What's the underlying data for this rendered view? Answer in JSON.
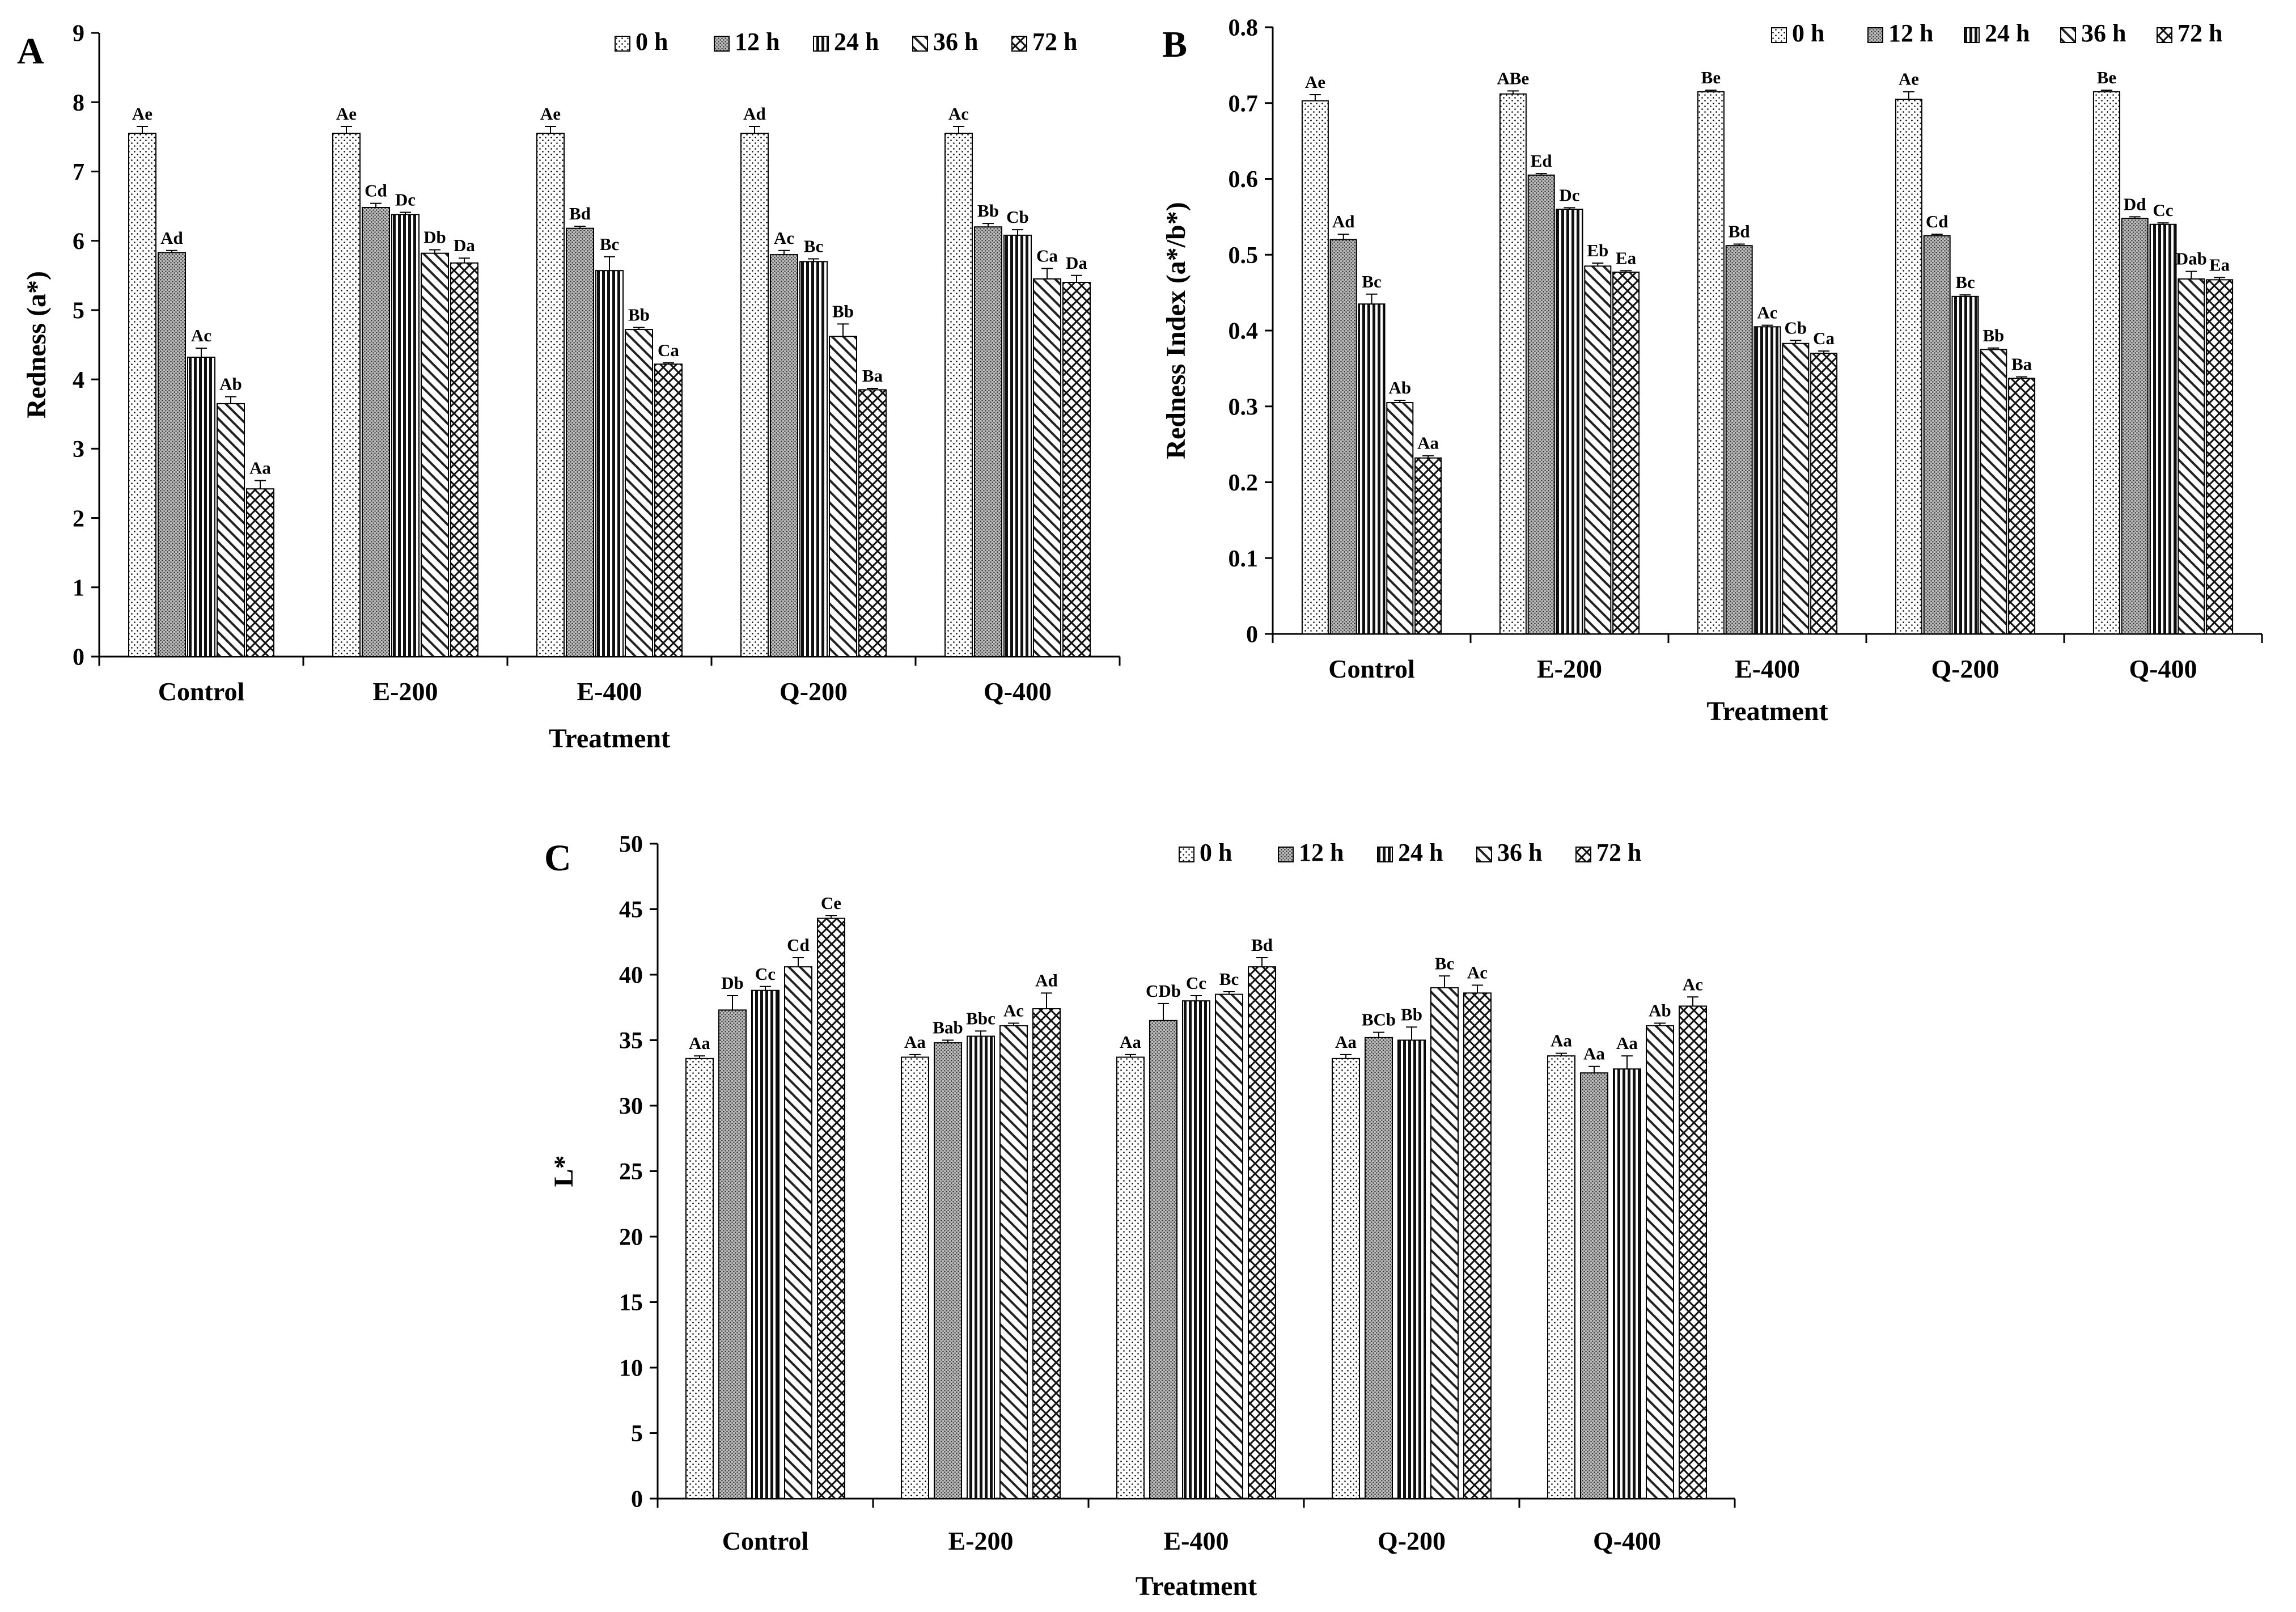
{
  "legend": [
    "0 h",
    "12 h",
    "24 h",
    "36 h",
    "72 h"
  ],
  "patterns": [
    "dots",
    "dense-dots",
    "vertical",
    "diagonal",
    "cross"
  ],
  "chart_data": [
    {
      "panel": "A",
      "type": "bar",
      "title": "",
      "xlabel": "Treatment",
      "ylabel": "Redness  (a*)",
      "ylim": [
        0,
        9
      ],
      "ystep": 1,
      "yticks": [
        "0",
        "1",
        "2",
        "3",
        "4",
        "5",
        "6",
        "7",
        "8",
        "9"
      ],
      "legend_position": "top-right",
      "categories": [
        "Control",
        "E-200",
        "E-400",
        "Q-200",
        "Q-400"
      ],
      "series": [
        {
          "name": "0 h",
          "values": [
            7.55,
            7.55,
            7.55,
            7.55,
            7.55
          ],
          "errors": [
            0.1,
            0.1,
            0.1,
            0.1,
            0.1
          ],
          "labels": [
            "Ae",
            "Ae",
            "Ae",
            "Ad",
            "Ac"
          ]
        },
        {
          "name": "12 h",
          "values": [
            5.83,
            6.48,
            6.18,
            5.8,
            6.2
          ],
          "errors": [
            0.03,
            0.06,
            0.03,
            0.06,
            0.05
          ],
          "labels": [
            "Ad",
            "Cd",
            "Bd",
            "Ac",
            "Bb"
          ]
        },
        {
          "name": "24 h",
          "values": [
            4.32,
            6.38,
            5.57,
            5.7,
            6.08
          ],
          "errors": [
            0.13,
            0.03,
            0.2,
            0.04,
            0.08
          ],
          "labels": [
            "Ac",
            "Dc",
            "Bc",
            "Bc",
            "Cb"
          ]
        },
        {
          "name": "36 h",
          "values": [
            3.65,
            5.82,
            4.72,
            4.62,
            5.45
          ],
          "errors": [
            0.1,
            0.05,
            0.03,
            0.18,
            0.15
          ],
          "labels": [
            "Ab",
            "Db",
            "Bb",
            "Bb",
            "Ca"
          ]
        },
        {
          "name": "72 h",
          "values": [
            2.42,
            5.68,
            4.22,
            3.85,
            5.4
          ],
          "errors": [
            0.12,
            0.07,
            0.02,
            0.02,
            0.1
          ],
          "labels": [
            "Aa",
            "Da",
            "Ca",
            "Ba",
            "Da"
          ]
        }
      ]
    },
    {
      "panel": "B",
      "type": "bar",
      "title": "",
      "xlabel": "Treatment",
      "ylabel": "Redness Index (a*/b*)",
      "ylim": [
        0,
        0.8
      ],
      "ystep": 0.1,
      "yticks": [
        "0",
        "0.1",
        "0.2",
        "0.3",
        "0.4",
        "0.5",
        "0.6",
        "0.7",
        "0.8"
      ],
      "legend_position": "top-right",
      "categories": [
        "Control",
        "E-200",
        "E-400",
        "Q-200",
        "Q-400"
      ],
      "series": [
        {
          "name": "0 h",
          "values": [
            0.703,
            0.712,
            0.715,
            0.705,
            0.715
          ],
          "errors": [
            0.008,
            0.004,
            0.002,
            0.01,
            0.002
          ],
          "labels": [
            "Ae",
            "ABe",
            "Be",
            "Ae",
            "Be"
          ]
        },
        {
          "name": "12 h",
          "values": [
            0.52,
            0.605,
            0.512,
            0.525,
            0.548
          ],
          "errors": [
            0.007,
            0.002,
            0.002,
            0.002,
            0.002
          ],
          "labels": [
            "Ad",
            "Ed",
            "Bd",
            "Cd",
            "Dd"
          ]
        },
        {
          "name": "24 h",
          "values": [
            0.435,
            0.56,
            0.405,
            0.445,
            0.54
          ],
          "errors": [
            0.013,
            0.002,
            0.002,
            0.002,
            0.002
          ],
          "labels": [
            "Bc",
            "Dc",
            "Ac",
            "Bc",
            "Cc"
          ]
        },
        {
          "name": "36 h",
          "values": [
            0.305,
            0.485,
            0.383,
            0.375,
            0.468
          ],
          "errors": [
            0.003,
            0.004,
            0.004,
            0.002,
            0.01
          ],
          "labels": [
            "Ab",
            "Eb",
            "Cb",
            "Bb",
            "Dab"
          ]
        },
        {
          "name": "72 h",
          "values": [
            0.232,
            0.477,
            0.37,
            0.337,
            0.467
          ],
          "errors": [
            0.003,
            0.002,
            0.003,
            0.002,
            0.003
          ],
          "labels": [
            "Aa",
            "Ea",
            "Ca",
            "Ba",
            "Ea"
          ]
        }
      ]
    },
    {
      "panel": "C",
      "type": "bar",
      "title": "",
      "xlabel": "Treatment",
      "ylabel": "L*",
      "ylim": [
        0,
        50
      ],
      "ystep": 5,
      "yticks": [
        "0",
        "5",
        "10",
        "15",
        "20",
        "25",
        "30",
        "35",
        "40",
        "45",
        "50"
      ],
      "legend_position": "top-right",
      "categories": [
        "Control",
        "E-200",
        "E-400",
        "Q-200",
        "Q-400"
      ],
      "series": [
        {
          "name": "0 h",
          "values": [
            33.6,
            33.7,
            33.7,
            33.6,
            33.8
          ],
          "errors": [
            0.2,
            0.2,
            0.2,
            0.3,
            0.2
          ],
          "labels": [
            "Aa",
            "Aa",
            "Aa",
            "Aa",
            "Aa"
          ]
        },
        {
          "name": "12 h",
          "values": [
            37.3,
            34.8,
            36.5,
            35.2,
            32.5
          ],
          "errors": [
            1.1,
            0.2,
            1.3,
            0.4,
            0.5
          ],
          "labels": [
            "Db",
            "Bab",
            "CDb",
            "BCb",
            "Aa"
          ]
        },
        {
          "name": "24 h",
          "values": [
            38.8,
            35.3,
            38.0,
            35.0,
            32.8
          ],
          "errors": [
            0.3,
            0.4,
            0.4,
            1.0,
            1.0
          ],
          "labels": [
            "Cc",
            "Bbc",
            "Cc",
            "Bb",
            "Aa"
          ]
        },
        {
          "name": "36 h",
          "values": [
            40.6,
            36.1,
            38.5,
            39.0,
            36.1
          ],
          "errors": [
            0.7,
            0.2,
            0.2,
            0.9,
            0.2
          ],
          "labels": [
            "Cd",
            "Ac",
            "Bc",
            "Bc",
            "Ab"
          ]
        },
        {
          "name": "72 h",
          "values": [
            44.3,
            37.4,
            40.6,
            38.6,
            37.6
          ],
          "errors": [
            0.2,
            1.2,
            0.7,
            0.6,
            0.7
          ],
          "labels": [
            "Ce",
            "Ad",
            "Bd",
            "Ac",
            "Ac"
          ]
        }
      ]
    }
  ]
}
